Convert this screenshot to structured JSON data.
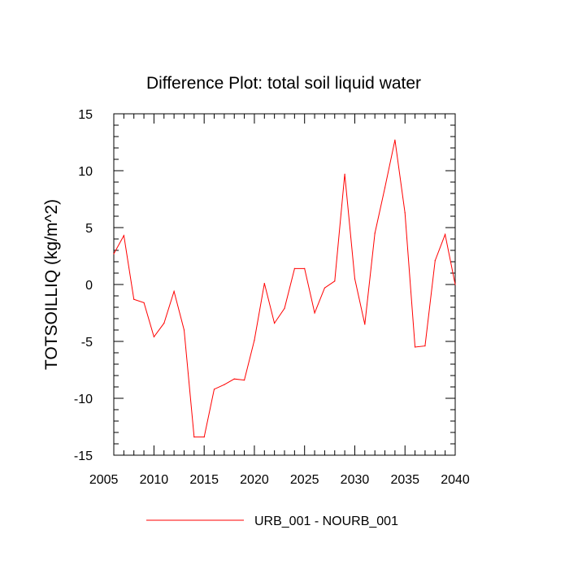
{
  "chart_data": {
    "type": "line",
    "title": "Difference Plot: total soil liquid water",
    "xlabel": "",
    "ylabel": "TOTSOILLIQ  (kg/m^2)",
    "xlim": [
      2006,
      2040
    ],
    "ylim": [
      -15,
      15
    ],
    "xticks": [
      2005,
      2010,
      2015,
      2020,
      2025,
      2030,
      2035,
      2040
    ],
    "yticks": [
      -15,
      -10,
      -5,
      0,
      5,
      10,
      15
    ],
    "grid": false,
    "legend_position": "bottom-center",
    "series": [
      {
        "name": "URB_001 - NOURB_001",
        "color": "#ff0000",
        "x": [
          2006,
          2007,
          2008,
          2009,
          2010,
          2011,
          2012,
          2013,
          2014,
          2015,
          2016,
          2017,
          2018,
          2019,
          2020,
          2021,
          2022,
          2023,
          2024,
          2025,
          2026,
          2027,
          2028,
          2029,
          2030,
          2031,
          2032,
          2033,
          2034,
          2035,
          2036,
          2037,
          2038,
          2039,
          2040
        ],
        "values": [
          2.7,
          4.3,
          -1.3,
          -1.6,
          -4.6,
          -3.4,
          -0.6,
          -4.0,
          -13.4,
          -13.4,
          -9.2,
          -8.8,
          -8.3,
          -8.4,
          -4.9,
          0.1,
          -3.4,
          -2.1,
          1.4,
          1.4,
          -2.5,
          -0.3,
          0.3,
          9.7,
          0.5,
          -3.5,
          4.5,
          8.5,
          12.7,
          6.3,
          -5.5,
          -5.4,
          2.1,
          4.4,
          0.0
        ]
      }
    ]
  }
}
